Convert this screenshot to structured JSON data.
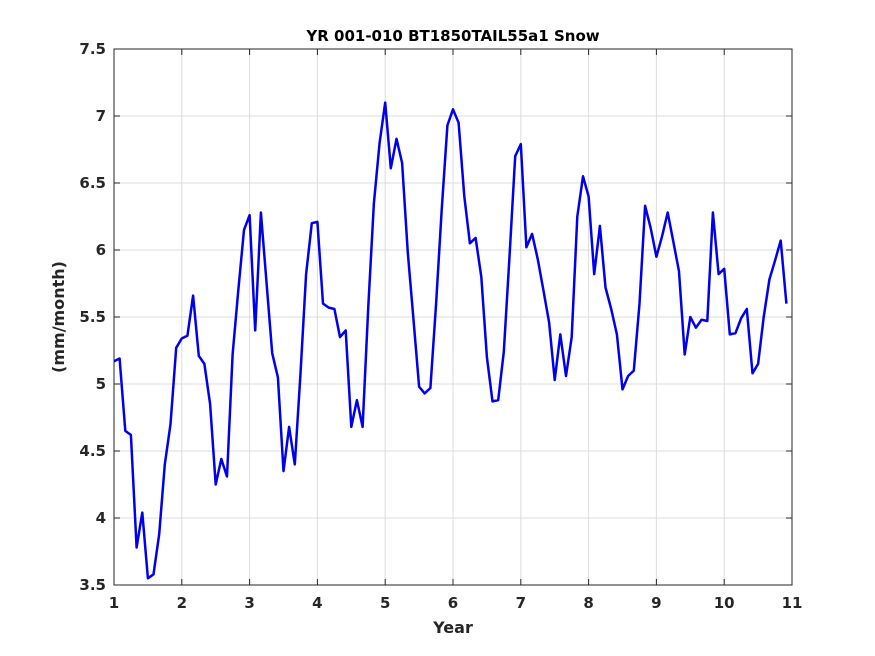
{
  "chart_data": {
    "type": "line",
    "title": "YR 001-010 BT1850TAIL55a1 Snow",
    "xlabel": "Year",
    "ylabel": "(mm/month)",
    "xlim": [
      1,
      11
    ],
    "ylim": [
      3.5,
      7.5
    ],
    "xticks": [
      "1",
      "2",
      "3",
      "4",
      "5",
      "6",
      "7",
      "8",
      "9",
      "10",
      "11"
    ],
    "yticks": [
      "3.5",
      "4",
      "4.5",
      "5",
      "5.5",
      "6",
      "6.5",
      "7",
      "7.5"
    ],
    "grid": true,
    "series": [
      {
        "color": "#0000ee",
        "x": [
          1.0,
          1.083,
          1.167,
          1.25,
          1.333,
          1.417,
          1.5,
          1.583,
          1.667,
          1.75,
          1.833,
          1.917,
          2.0,
          2.083,
          2.167,
          2.25,
          2.333,
          2.417,
          2.5,
          2.583,
          2.667,
          2.75,
          2.833,
          2.917,
          3.0,
          3.083,
          3.167,
          3.25,
          3.333,
          3.417,
          3.5,
          3.583,
          3.667,
          3.75,
          3.833,
          3.917,
          4.0,
          4.083,
          4.167,
          4.25,
          4.333,
          4.417,
          4.5,
          4.583,
          4.667,
          4.75,
          4.833,
          4.917,
          5.0,
          5.083,
          5.167,
          5.25,
          5.333,
          5.417,
          5.5,
          5.583,
          5.667,
          5.75,
          5.833,
          5.917,
          6.0,
          6.083,
          6.167,
          6.25,
          6.333,
          6.417,
          6.5,
          6.583,
          6.667,
          6.75,
          6.833,
          6.917,
          7.0,
          7.083,
          7.167,
          7.25,
          7.333,
          7.417,
          7.5,
          7.583,
          7.667,
          7.75,
          7.833,
          7.917,
          8.0,
          8.083,
          8.167,
          8.25,
          8.333,
          8.417,
          8.5,
          8.583,
          8.667,
          8.75,
          8.833,
          8.917,
          9.0,
          9.083,
          9.167,
          9.25,
          9.333,
          9.417,
          9.5,
          9.583,
          9.667,
          9.75,
          9.833,
          9.917,
          10.0,
          10.083,
          10.167,
          10.25,
          10.333,
          10.417,
          10.5,
          10.583,
          10.667,
          10.75,
          10.833,
          10.917
        ],
        "y": [
          5.17,
          5.19,
          4.65,
          4.62,
          3.78,
          4.04,
          3.55,
          3.58,
          3.88,
          4.4,
          4.7,
          5.27,
          5.34,
          5.36,
          5.66,
          5.21,
          5.15,
          4.85,
          4.25,
          4.44,
          4.31,
          5.22,
          5.7,
          6.15,
          6.26,
          5.4,
          6.28,
          5.75,
          5.23,
          5.05,
          4.35,
          4.68,
          4.4,
          5.08,
          5.82,
          6.2,
          6.21,
          5.6,
          5.57,
          5.56,
          5.35,
          5.4,
          4.68,
          4.88,
          4.68,
          5.58,
          6.35,
          6.8,
          7.1,
          6.61,
          6.83,
          6.65,
          5.98,
          5.48,
          4.98,
          4.93,
          4.97,
          5.6,
          6.3,
          6.93,
          7.05,
          6.95,
          6.4,
          6.05,
          6.09,
          5.8,
          5.2,
          4.87,
          4.88,
          5.24,
          5.95,
          6.7,
          6.79,
          6.02,
          6.12,
          5.93,
          5.7,
          5.46,
          5.03,
          5.37,
          5.06,
          5.35,
          6.25,
          6.55,
          6.4,
          5.82,
          6.18,
          5.72,
          5.56,
          5.37,
          4.96,
          5.06,
          5.1,
          5.6,
          6.33,
          6.16,
          5.95,
          6.1,
          6.28,
          6.06,
          5.84,
          5.22,
          5.5,
          5.42,
          5.48,
          5.47,
          6.28,
          5.82,
          5.86,
          5.37,
          5.38,
          5.49,
          5.56,
          5.08,
          5.15,
          5.5,
          5.78,
          5.92,
          6.07,
          5.6
        ]
      }
    ]
  }
}
